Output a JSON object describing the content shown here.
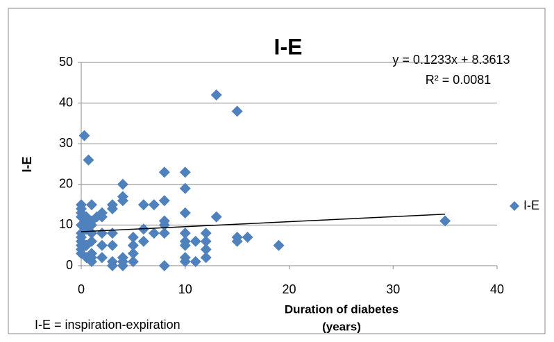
{
  "chart_data": {
    "type": "scatter",
    "title": "I-E",
    "x_label": [
      "Duration of diabetes",
      "(years)"
    ],
    "y_label": "I-E",
    "annotations": [
      "y = 0.1233x + 8.3613",
      "R² = 0.0081"
    ],
    "note": "I-E = inspiration-expiration",
    "x": [
      0.3,
      0.7,
      13,
      15,
      35,
      19,
      16,
      15,
      15,
      13,
      12,
      12,
      12,
      12,
      11,
      11,
      10,
      10,
      10,
      10,
      10,
      10,
      10,
      10,
      8,
      8,
      8,
      8,
      8,
      8,
      7,
      7,
      6,
      6,
      6,
      5,
      5,
      5,
      5,
      4,
      4,
      4,
      4,
      4,
      4,
      3,
      3,
      3,
      3,
      3,
      3,
      2,
      2,
      2,
      2,
      2,
      1.5,
      1,
      1,
      1,
      1,
      1,
      1,
      1,
      1,
      0,
      0,
      0,
      0,
      0,
      0,
      0,
      0,
      0,
      0,
      0,
      0.5,
      0.5,
      0.5,
      0.5,
      0.5
    ],
    "series": [
      {
        "name": "I-E",
        "color": "#4f81bd",
        "values": [
          32,
          26,
          42,
          38,
          11,
          5,
          7,
          6,
          7,
          12,
          8,
          6,
          4,
          2,
          6,
          1,
          23,
          19,
          13,
          8,
          6,
          5,
          2,
          1,
          23,
          16,
          11,
          10,
          8,
          0,
          15,
          8,
          15,
          9,
          6,
          7,
          5,
          3,
          1,
          20,
          17,
          16,
          2,
          0,
          1,
          15,
          14,
          8,
          5,
          1,
          0,
          13,
          12,
          8,
          5,
          2,
          12,
          15,
          11,
          10,
          8,
          6,
          3,
          1,
          2,
          15,
          14,
          13,
          12,
          10,
          8,
          7,
          6,
          5,
          4,
          3,
          11,
          9,
          5,
          2,
          12
        ]
      }
    ],
    "trendline": {
      "x": [
        0,
        35
      ],
      "values": [
        8.36,
        12.68
      ]
    },
    "xlim": [
      0,
      40
    ],
    "xticks": [
      0,
      10,
      20,
      30,
      40
    ],
    "ylim": [
      0,
      50
    ],
    "yticks": [
      0,
      10,
      20,
      30,
      40,
      50
    ],
    "grid": true,
    "legend": "right"
  }
}
